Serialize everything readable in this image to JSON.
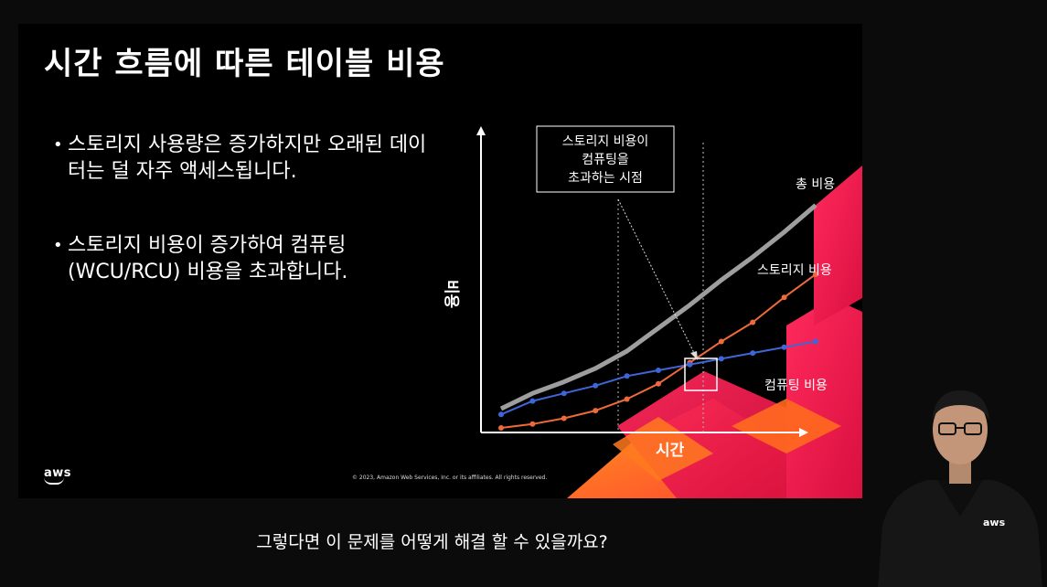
{
  "slide": {
    "title": "시간 흐름에 따른 테이블 비용",
    "bullets": [
      "스토리지 사용량은 증가하지만 오래된 데이터는 덜 자주 액세스됩니다.",
      "스토리지 비용이 증가하여 컴퓨팅(WCU/RCU) 비용을 초과합니다."
    ],
    "logo": "aws",
    "copyright": "© 2023, Amazon Web Services, Inc. or its affiliates. All rights reserved."
  },
  "chart_data": {
    "type": "line",
    "xlabel": "시간",
    "ylabel": "비용",
    "x": [
      1,
      2,
      3,
      4,
      5,
      6,
      7,
      8,
      9,
      10,
      11
    ],
    "series": [
      {
        "name": "총 비용",
        "values": [
          1.0,
          1.8,
          2.4,
          3.1,
          4.0,
          5.2,
          6.4,
          7.7,
          8.9,
          10.2,
          11.6
        ],
        "color": "#9e9e9e"
      },
      {
        "name": "스토리지 비용",
        "values": [
          0.0,
          0.2,
          0.5,
          0.9,
          1.5,
          2.3,
          3.4,
          4.5,
          5.5,
          6.8,
          8.0
        ],
        "color": "#ee6a3a"
      },
      {
        "name": "컴퓨팅 비용",
        "values": [
          0.7,
          1.4,
          1.8,
          2.2,
          2.7,
          3.0,
          3.3,
          3.6,
          3.9,
          4.2,
          4.5
        ],
        "color": "#3f66d8"
      }
    ],
    "annotation": {
      "lines": [
        "스토리지 비용이",
        "컴퓨팅을",
        "초과하는 시점"
      ]
    },
    "grid": false
  },
  "subtitle": "그렇다면 이 문제를 어떻게 해결 할 수 있을까요?",
  "presenter": {
    "shirt_logo": "aws"
  },
  "colors": {
    "slide_bg": "#000000",
    "accent_red": "#e8184f",
    "accent_orange": "#ff8a1f"
  }
}
